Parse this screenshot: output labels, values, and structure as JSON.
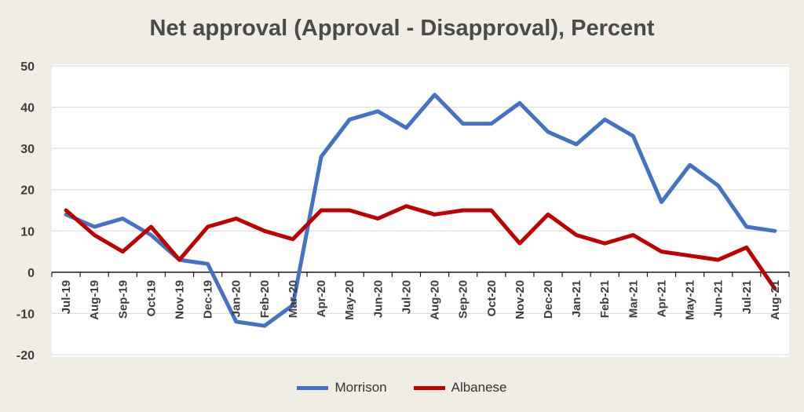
{
  "chart_data": {
    "type": "line",
    "title": "Net approval (Approval - Disapproval), Percent",
    "xlabel": "",
    "ylabel": "",
    "ylim": [
      -20,
      50
    ],
    "yticks": [
      "50",
      "40",
      "30",
      "20",
      "10",
      "0",
      "-10",
      "-20"
    ],
    "grid": true,
    "legend_position": "bottom",
    "categories": [
      "Jul-19",
      "Aug-19",
      "Sep-19",
      "Oct-19",
      "Nov-19",
      "Dec-19",
      "Jan-20",
      "Feb-20",
      "Mar-20",
      "Apr-20",
      "May-20",
      "Jun-20",
      "Jul-20",
      "Aug-20",
      "Sep-20",
      "Oct-20",
      "Nov-20",
      "Dec-20",
      "Jan-21",
      "Feb-21",
      "Mar-21",
      "Apr-21",
      "May-21",
      "Jun-21",
      "Jul-21",
      "Aug-21"
    ],
    "series": [
      {
        "name": "Morrison",
        "color": "#4472c4",
        "values": [
          14,
          11,
          13,
          9,
          3,
          2,
          -12,
          -13,
          -8,
          28,
          37,
          39,
          35,
          43,
          36,
          36,
          41,
          34,
          31,
          37,
          33,
          17,
          26,
          21,
          11,
          10
        ]
      },
      {
        "name": "Albanese",
        "color": "#c00000",
        "values": [
          15,
          9,
          5,
          11,
          3,
          11,
          13,
          10,
          8,
          15,
          15,
          13,
          16,
          14,
          15,
          15,
          7,
          14,
          9,
          7,
          9,
          5,
          4,
          3,
          6,
          -4
        ]
      }
    ]
  }
}
